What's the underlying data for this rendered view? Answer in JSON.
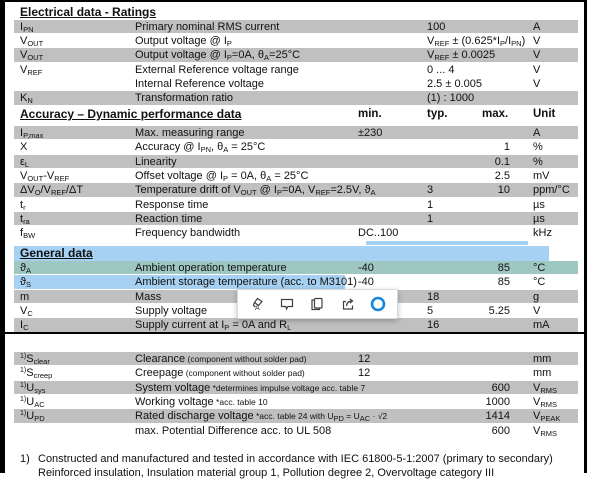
{
  "colors": {
    "gray_row": "#c0c0c0",
    "blue_selection": "#a6d1f3",
    "teal_selection": "#9fc7c1",
    "cortana_blue": "#1486e0",
    "icon_gray": "#404040"
  },
  "headings": {
    "electrical": "Electrical data - Ratings",
    "accuracy": "Accuracy – Dynamic performance data",
    "general": "General data"
  },
  "columns": {
    "min": "min.",
    "typ": "typ.",
    "max": "max.",
    "unit": "Unit"
  },
  "electrical_rows": [
    {
      "sym": "I_{PN}",
      "desc": "Primary nominal RMS current",
      "typ": "100",
      "unit": "A",
      "shade": "gray"
    },
    {
      "sym": "V_{OUT}",
      "desc": "Output voltage @ I_{P}",
      "typ": "V_{REF} ± (0.625*I_{P}/I_{PN})",
      "unit": "V",
      "shade": "white"
    },
    {
      "sym": "V_{OUT}",
      "desc": "Output voltage @ I_{P}=0A, θ_{A}=25°C",
      "typ": "V_{REF} ± 0.0025",
      "unit": "V",
      "shade": "gray"
    },
    {
      "sym": "V_{REF}",
      "desc": "External Reference voltage range",
      "typ": "0 ... 4",
      "unit": "V",
      "shade": "white"
    },
    {
      "sym": "",
      "desc": "Internal Reference voltage",
      "typ": "2.5 ± 0.005",
      "unit": "V",
      "shade": "white"
    },
    {
      "sym": "K_{N}",
      "desc": "Transformation ratio",
      "typ": "(1) : 1000",
      "unit": "",
      "shade": "gray"
    }
  ],
  "accuracy_rows": [
    {
      "sym": "I_{P,max}",
      "desc": "Max. measuring range",
      "min": "±230",
      "typ": "",
      "max": "",
      "unit": "A",
      "shade": "gray"
    },
    {
      "sym": "X",
      "desc": "Accuracy @ I_{PN}, θ_{A} = 25°C",
      "min": "",
      "typ": "",
      "max": "1",
      "unit": "%",
      "shade": "white"
    },
    {
      "sym": "ε_{L}",
      "desc": "Linearity",
      "min": "",
      "typ": "",
      "max": "0.1",
      "unit": "%",
      "shade": "gray"
    },
    {
      "sym": "V_{OUT}-V_{REF}",
      "desc": "Offset voltage @ I_{P} = 0A, θ_{A} = 25°C",
      "min": "",
      "typ": "",
      "max": "2.5",
      "unit": "mV",
      "shade": "white"
    },
    {
      "sym": "ΔV_{O}/V_{REF}/ΔT",
      "desc": "Temperature drift of V_{OUT} @ I_{P}=0A, V_{REF}=2.5V, ϑ_{A}",
      "min": "",
      "typ": "3",
      "max": "10",
      "unit": "ppm/°C",
      "shade": "gray"
    },
    {
      "sym": "t_{r}",
      "desc": "Response time",
      "min": "",
      "typ": "1",
      "max": "",
      "unit": "µs",
      "shade": "white"
    },
    {
      "sym": "t_{ra}",
      "desc": "Reaction time",
      "min": "",
      "typ": "1",
      "max": "",
      "unit": "µs",
      "shade": "gray"
    },
    {
      "sym": "f_{BW}",
      "desc": "Frequency bandwidth",
      "min": "DC..100",
      "typ": "",
      "max": "",
      "unit": "kHz",
      "shade": "white"
    }
  ],
  "general_rows": [
    {
      "sym": "ϑ_{A}",
      "desc": "Ambient operation temperature",
      "min": "-40",
      "typ": "",
      "max": "85",
      "unit": "°C",
      "shade": "teal"
    },
    {
      "sym": "ϑ_{S}",
      "desc": "Ambient storage temperature (acc. to M3101)",
      "min": "-40",
      "typ": "",
      "max": "85",
      "unit": "°C",
      "shade": "blue"
    },
    {
      "sym": "m",
      "desc": "Mass",
      "min": "",
      "typ": "18",
      "max": "",
      "unit": "g",
      "shade": "gray"
    },
    {
      "sym": "V_{C}",
      "desc": "Supply voltage",
      "min": "",
      "typ": "5",
      "max": "5.25",
      "unit": "V",
      "shade": "white"
    },
    {
      "sym": "I_{C}",
      "desc": "Supply current at I_{P} = 0A and R_{L}",
      "min": "",
      "typ": "16",
      "max": "",
      "unit": "mA",
      "shade": "gray"
    }
  ],
  "isolation_rows": [
    {
      "sym": "^{1)}S_{clear}",
      "desc": "Clearance",
      "note": "(component without solder pad)",
      "min": "12",
      "typ": "",
      "max": "",
      "unit": "mm",
      "shade": "gray"
    },
    {
      "sym": "^{1)}S_{creep}",
      "desc": "Creepage",
      "note": "(component without solder pad)",
      "min": "12",
      "typ": "",
      "max": "",
      "unit": "mm",
      "shade": "white"
    },
    {
      "sym": "^{1)}U_{sys}",
      "desc": "System voltage",
      "note": "*determines impulse voltage acc. table 7",
      "min": "",
      "typ": "",
      "max": "600",
      "unit": "V_{RMS}",
      "shade": "gray"
    },
    {
      "sym": "^{1)}U_{AC}",
      "desc": "Working voltage",
      "note": "*acc. table 10",
      "min": "",
      "typ": "",
      "max": "1000",
      "unit": "V_{RMS}",
      "shade": "white"
    },
    {
      "sym": "^{1)}U_{PD}",
      "desc": "Rated discharge voltage",
      "note": "*acc. table 24 with U_{PD} = U_{AC} · √2",
      "min": "",
      "typ": "",
      "max": "1414",
      "unit": "V_{PEAK}",
      "shade": "gray"
    },
    {
      "sym": "",
      "desc": "max. Potential Difference acc. to UL 508",
      "note": "",
      "min": "",
      "typ": "",
      "max": "600",
      "unit": "V_{RMS}",
      "shade": "white"
    }
  ],
  "footnote": {
    "marker": "1)",
    "line1": "Constructed and manufactured and tested in accordance with IEC 61800-5-1:2007 (primary to secondary)",
    "line2": "Reinforced insulation, Insulation material group 1, Pollution degree 2, Overvoltage category III"
  },
  "toolbar": {
    "icons": [
      "highlighter",
      "comment",
      "copy",
      "share",
      "cortana"
    ]
  }
}
